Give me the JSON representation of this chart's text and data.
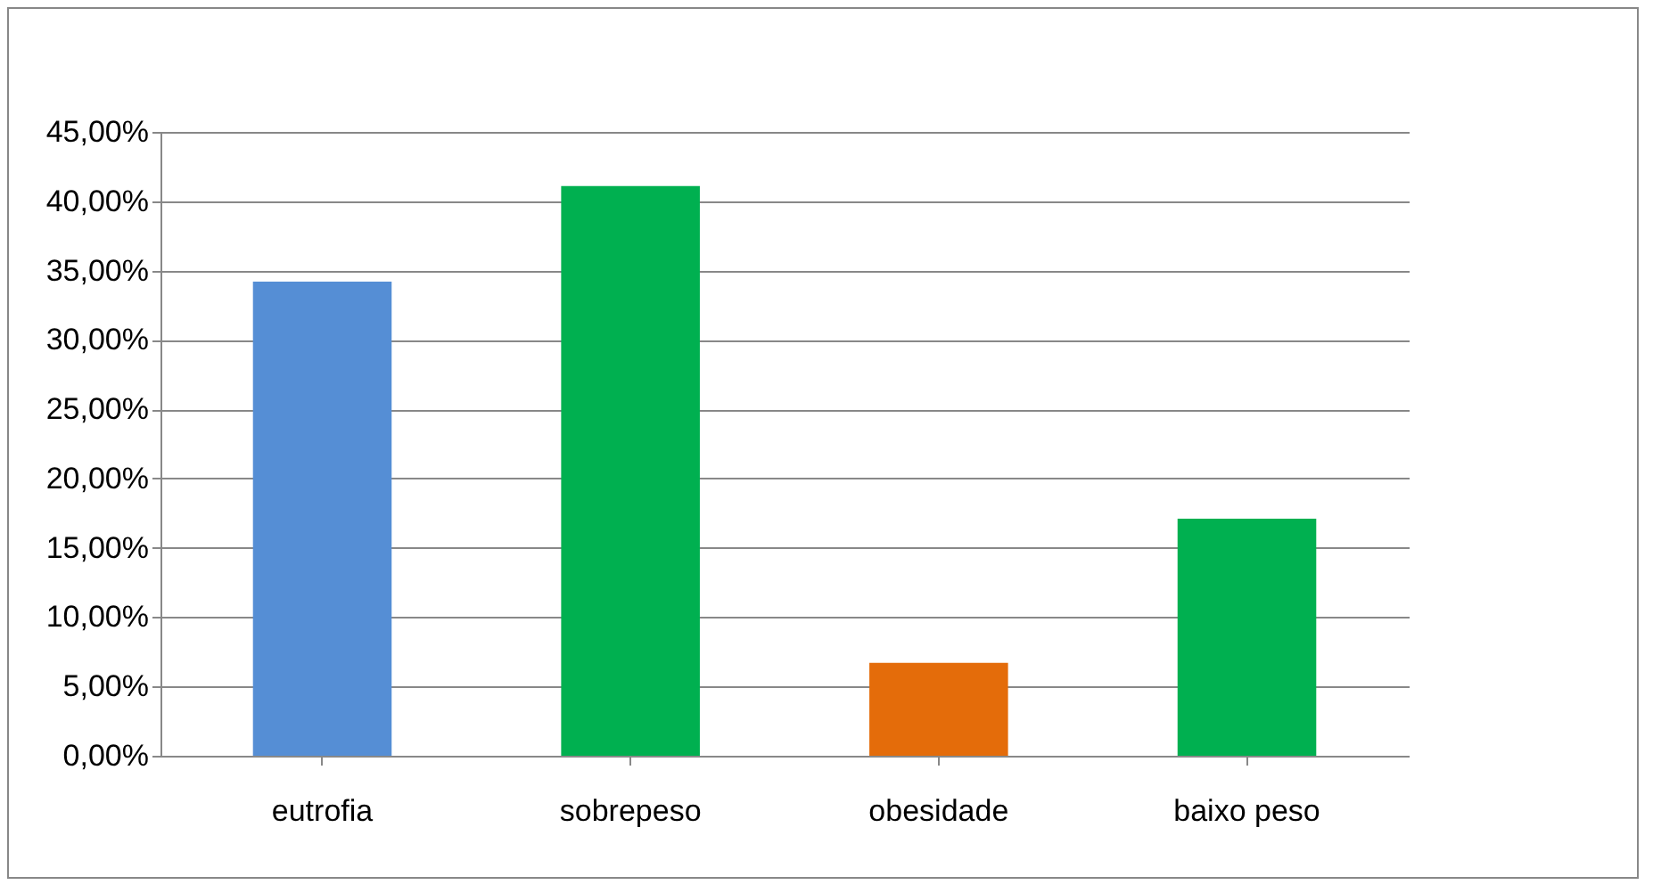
{
  "chart_data": {
    "type": "bar",
    "categories": [
      "eutrofia",
      "sobrepeso",
      "obesidade",
      "baixo peso"
    ],
    "values": [
      34.2,
      41.1,
      6.7,
      17.1
    ],
    "colors": [
      "#558ed5",
      "#00b050",
      "#e46c0a",
      "#00b050"
    ],
    "ylim": [
      0,
      45
    ],
    "yticks": [
      {
        "value": 0,
        "label": "0,00%"
      },
      {
        "value": 5,
        "label": "5,00%"
      },
      {
        "value": 10,
        "label": "10,00%"
      },
      {
        "value": 15,
        "label": "15,00%"
      },
      {
        "value": 20,
        "label": "20,00%"
      },
      {
        "value": 25,
        "label": "25,00%"
      },
      {
        "value": 30,
        "label": "30,00%"
      },
      {
        "value": 35,
        "label": "35,00%"
      },
      {
        "value": 40,
        "label": "40,00%"
      },
      {
        "value": 45,
        "label": "45,00%"
      }
    ],
    "grid": "y"
  }
}
